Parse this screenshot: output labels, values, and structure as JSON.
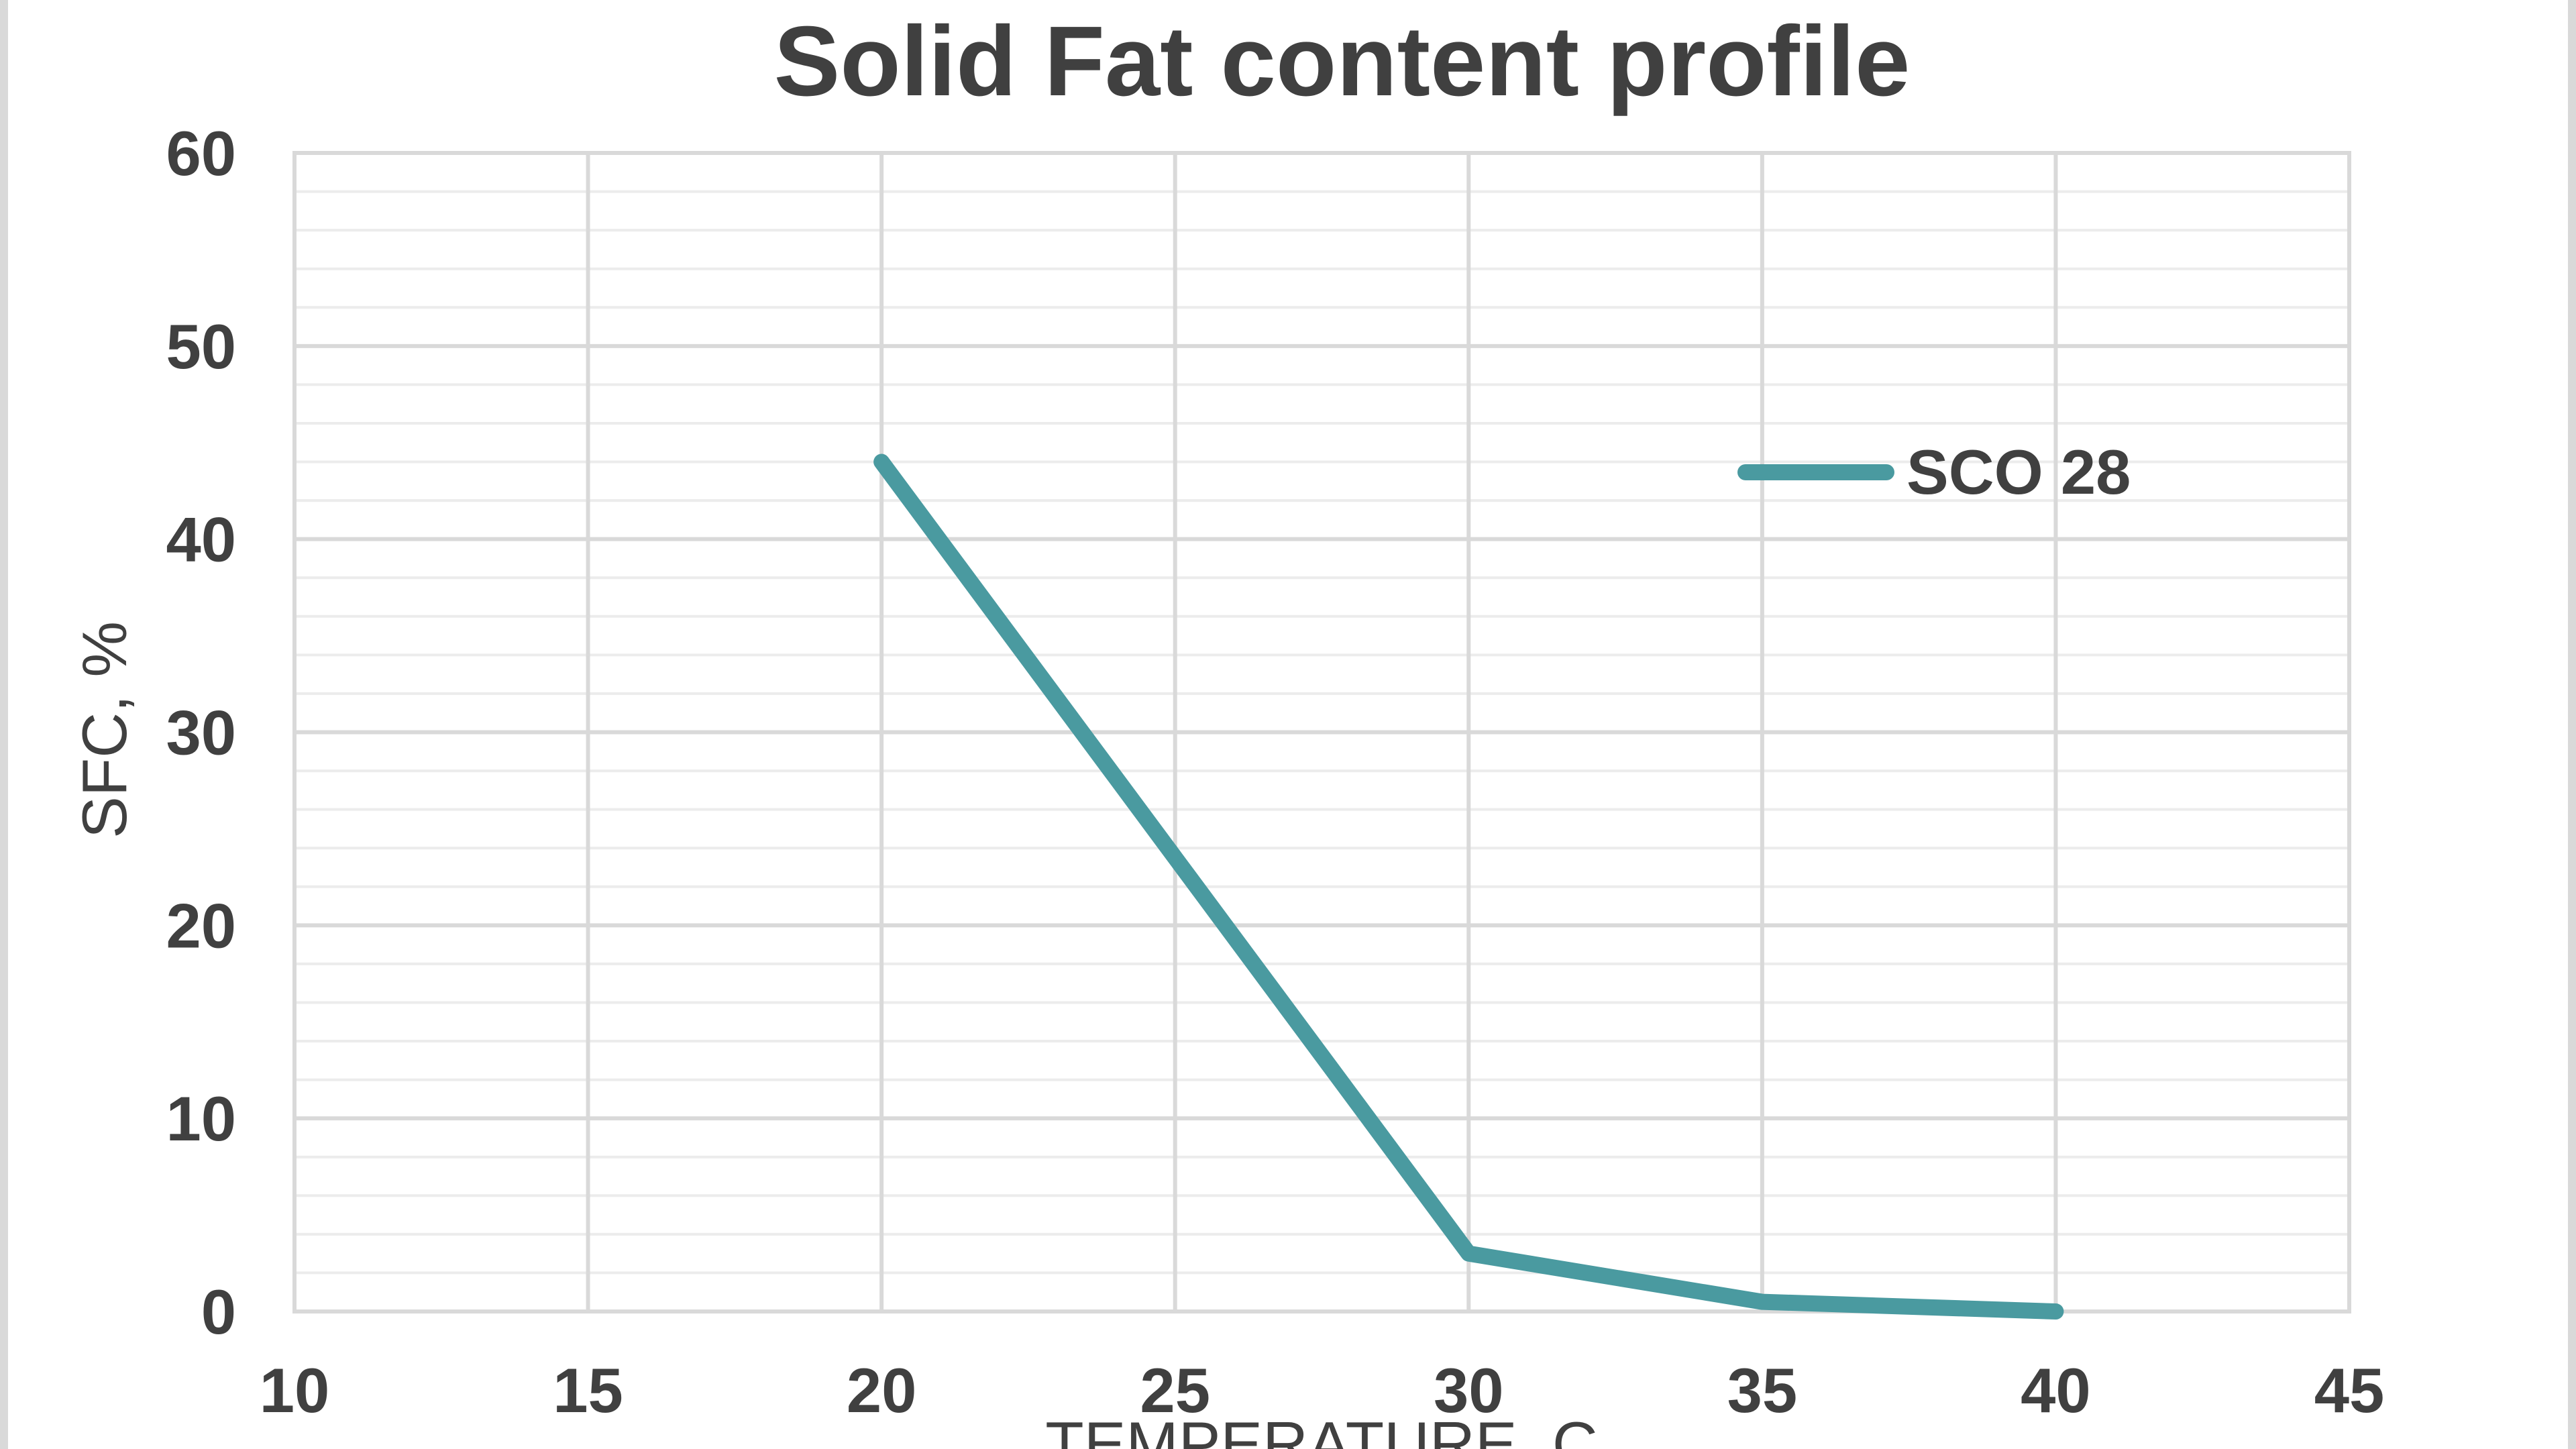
{
  "chart_data": {
    "type": "line",
    "title": "Solid Fat content profile",
    "xlabel": "TEMPERATURE, C",
    "ylabel": "SFC, %",
    "xlim": [
      10,
      45
    ],
    "ylim": [
      0,
      60
    ],
    "x_ticks": [
      10,
      15,
      20,
      25,
      30,
      35,
      40,
      45
    ],
    "y_ticks": [
      0,
      10,
      20,
      30,
      40,
      50,
      60
    ],
    "grid": true,
    "minor_grid": true,
    "legend_position": "right",
    "series": [
      {
        "name": "SCO 28",
        "color": "#4a9aa0",
        "x": [
          20,
          25,
          30,
          35,
          40
        ],
        "values": [
          44,
          23.5,
          3,
          0.5,
          0
        ]
      }
    ]
  }
}
